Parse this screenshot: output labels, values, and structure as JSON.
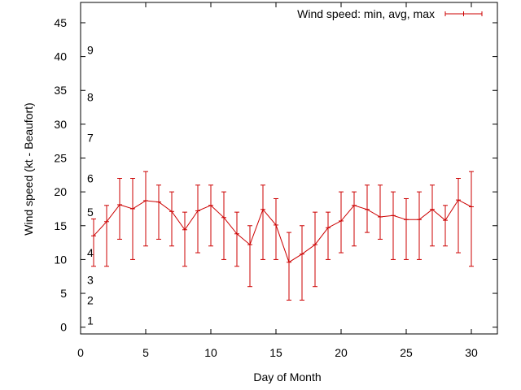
{
  "chart_data": {
    "type": "line",
    "xlabel": "Day of Month",
    "ylabel": "Wind speed (kt - Beaufort)",
    "xlim": [
      0,
      32
    ],
    "ylim": [
      -1,
      48
    ],
    "x_ticks": [
      0,
      5,
      10,
      15,
      20,
      25,
      30
    ],
    "y_ticks": [
      0,
      5,
      10,
      15,
      20,
      25,
      30,
      35,
      40,
      45
    ],
    "grid": false,
    "legend_position": "top-right",
    "beaufort_labels": [
      {
        "label": "1",
        "value": 1
      },
      {
        "label": "2",
        "value": 4
      },
      {
        "label": "3",
        "value": 7
      },
      {
        "label": "4",
        "value": 11
      },
      {
        "label": "5",
        "value": 17
      },
      {
        "label": "6",
        "value": 22
      },
      {
        "label": "7",
        "value": 28
      },
      {
        "label": "8",
        "value": 34
      },
      {
        "label": "9",
        "value": 41
      }
    ],
    "series": [
      {
        "name": "Wind speed: min, avg, max",
        "color": "#cc0000",
        "x": [
          1,
          2,
          3,
          4,
          5,
          6,
          7,
          8,
          9,
          10,
          11,
          12,
          13,
          14,
          15,
          16,
          17,
          18,
          19,
          20,
          21,
          22,
          23,
          24,
          25,
          26,
          27,
          28,
          29,
          30
        ],
        "avg": [
          13.5,
          15.6,
          18.1,
          17.5,
          18.7,
          18.5,
          17.1,
          14.4,
          17.2,
          18.0,
          16.2,
          13.8,
          12.2,
          17.4,
          15.1,
          9.6,
          10.8,
          12.2,
          14.7,
          15.7,
          18.0,
          17.4,
          16.3,
          16.5,
          15.9,
          15.9,
          17.4,
          15.8,
          18.8,
          17.8
        ],
        "min": [
          9,
          9,
          13,
          10,
          12,
          13,
          12,
          9,
          11,
          12,
          10,
          9,
          6,
          10,
          10,
          4,
          4,
          6,
          10,
          11,
          12,
          14,
          13,
          10,
          10,
          10,
          12,
          12,
          11,
          9
        ],
        "max": [
          16,
          18,
          22,
          22,
          23,
          21,
          20,
          17,
          21,
          21,
          20,
          17,
          15,
          21,
          19,
          14,
          15,
          17,
          17,
          20,
          20,
          21,
          21,
          20,
          19,
          20,
          21,
          18,
          22,
          23
        ]
      }
    ]
  }
}
